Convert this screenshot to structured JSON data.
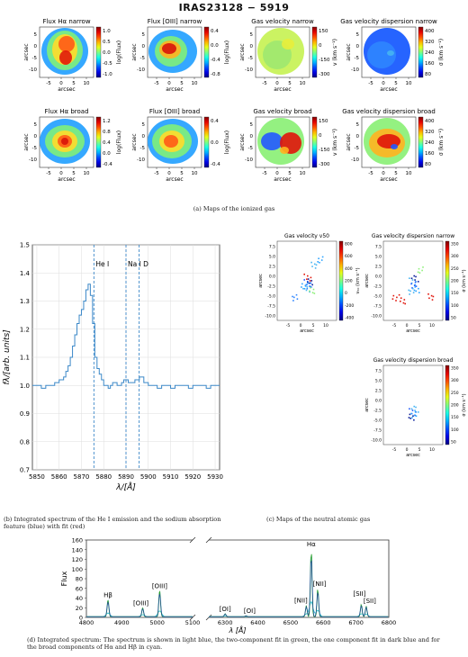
{
  "title": "IRAS23128 − 5919",
  "captions": {
    "a": "(a) Maps of the ionized gas",
    "b": "(b) Integrated spectrum of the He I emission and the sodium absorption feature (blue) with fit (red)",
    "c": "(c) Maps of the neutral atomic gas",
    "d": "(d) Integrated spectrum: The spectrum is shown in light blue, the two-component fit in green, the one component fit in dark blue and for the broad components of Hα and Hβ in cyan."
  },
  "panel_a": {
    "common": {
      "xlabel": "arcsec",
      "ylabel": "arcsec",
      "xticks": [
        "-5",
        "0",
        "5",
        "10"
      ],
      "yticks": [
        "5",
        "0",
        "-5",
        "-10"
      ]
    },
    "maps": [
      {
        "title": "Flux Hα narrow",
        "cbar_label": "log(Flux)",
        "cbar_ticks": [
          "1.0",
          "0.5",
          "0.0",
          "-0.5",
          "-1.0"
        ],
        "colormap": "jet",
        "pattern": "double"
      },
      {
        "title": "Flux [OIII] narrow",
        "cbar_label": "log(Flux)",
        "cbar_ticks": [
          "0.4",
          "0.0",
          "-0.4",
          "-0.8"
        ],
        "colormap": "jet",
        "pattern": "oiii"
      },
      {
        "title": "Gas velocity narrow",
        "cbar_label": "v (km s⁻¹)",
        "cbar_ticks": [
          "150",
          "0",
          "-150",
          "-300"
        ],
        "colormap": "jet",
        "pattern": "vel-narrow"
      },
      {
        "title": "Gas velocity dispersion narrow",
        "cbar_label": "σ (km s⁻¹)",
        "cbar_ticks": [
          "400",
          "320",
          "240",
          "160",
          "80"
        ],
        "colormap": "jet",
        "pattern": "disp-narrow"
      },
      {
        "title": "Flux Hα broad",
        "cbar_label": "log(Flux)",
        "cbar_ticks": [
          "1.2",
          "0.8",
          "0.4",
          "0.0",
          "-0.4"
        ],
        "colormap": "jet",
        "pattern": "broad"
      },
      {
        "title": "Flux [OIII] broad",
        "cbar_label": "log(Flux)",
        "cbar_ticks": [
          "0.4",
          "0.0",
          "-0.4"
        ],
        "colormap": "jet",
        "pattern": "broad2"
      },
      {
        "title": "Gas velocity broad",
        "cbar_label": "v (km s⁻¹)",
        "cbar_ticks": [
          "150",
          "0",
          "-150",
          "-300"
        ],
        "colormap": "jet",
        "pattern": "vel-broad"
      },
      {
        "title": "Gas velocity dispersion broad",
        "cbar_label": "σ (km s⁻¹)",
        "cbar_ticks": [
          "400",
          "320",
          "240",
          "160",
          "80"
        ],
        "colormap": "jet",
        "pattern": "disp-broad"
      }
    ]
  },
  "panel_c": {
    "common": {
      "xlabel": "arcsec",
      "ylabel": "arcsec",
      "xticks": [
        "-5",
        "0",
        "5",
        "10"
      ],
      "yticks": [
        "7.5",
        "5.0",
        "2.5",
        "0.0",
        "-2.5",
        "-5.0",
        "-7.5",
        "-10.0"
      ]
    },
    "maps": [
      {
        "title": "Gas velocity v50",
        "cbar_label": "v₅₀ (km s⁻¹)",
        "cbar_ticks": [
          "800",
          "600",
          "400",
          "200",
          "0",
          "-200",
          "-400"
        ]
      },
      {
        "title": "Gas velocity dispersion narrow",
        "cbar_label": "σ (km s⁻¹)",
        "cbar_ticks": [
          "350",
          "300",
          "250",
          "200",
          "150",
          "100",
          "50"
        ]
      },
      {
        "title": "Gas velocity dispersion broad",
        "cbar_label": "σ (km s⁻¹)",
        "cbar_ticks": [
          "350",
          "300",
          "250",
          "200",
          "150",
          "100",
          "50"
        ]
      }
    ]
  },
  "chart_data": [
    {
      "type": "line",
      "panel": "b",
      "xlabel": "λ/[Å]",
      "ylabel": "fλ/[arb. units]",
      "xlim": [
        5848,
        5932
      ],
      "ylim": [
        0.7,
        1.5
      ],
      "xticks": [
        5850,
        5860,
        5870,
        5880,
        5890,
        5900,
        5910,
        5920,
        5930
      ],
      "yticks": [
        0.7,
        0.8,
        0.9,
        1.0,
        1.1,
        1.2,
        1.3,
        1.4,
        1.5
      ],
      "grid": true,
      "lines": [
        {
          "label": "He I",
          "x": 5875.6
        },
        {
          "label": "Na I D",
          "x": 5890.0
        },
        {
          "label": "",
          "x": 5895.9
        }
      ],
      "series": [
        {
          "x": [
            5848,
            5850,
            5852,
            5854,
            5856,
            5858,
            5860,
            5862,
            5863,
            5864,
            5865,
            5866,
            5867,
            5868,
            5869,
            5870,
            5871,
            5872,
            5873,
            5874,
            5875,
            5876,
            5877,
            5878,
            5879,
            5880,
            5881,
            5882,
            5883,
            5884,
            5886,
            5888,
            5889,
            5890,
            5891,
            5892,
            5894,
            5896,
            5898,
            5900,
            5902,
            5904,
            5906,
            5908,
            5910,
            5912,
            5914,
            5916,
            5918,
            5920,
            5922,
            5924,
            5926,
            5928,
            5930,
            5932
          ],
          "y": [
            1.0,
            1.0,
            0.99,
            1.0,
            1.0,
            1.01,
            1.02,
            1.03,
            1.05,
            1.07,
            1.1,
            1.14,
            1.18,
            1.22,
            1.25,
            1.27,
            1.3,
            1.34,
            1.36,
            1.32,
            1.22,
            1.1,
            1.06,
            1.04,
            1.02,
            1.0,
            1.0,
            0.99,
            1.0,
            1.01,
            1.0,
            1.01,
            1.02,
            1.02,
            1.01,
            1.01,
            1.02,
            1.03,
            1.01,
            1.0,
            1.0,
            0.99,
            1.0,
            1.0,
            0.99,
            1.0,
            1.0,
            1.0,
            0.99,
            1.0,
            1.0,
            1.0,
            0.99,
            1.0,
            1.0,
            1.0
          ]
        }
      ]
    },
    {
      "type": "line",
      "panel": "d",
      "xlabel": "λ [Å]",
      "ylabel": "Flux",
      "ylim": [
        0,
        160
      ],
      "yticks": [
        0,
        20,
        40,
        60,
        80,
        100,
        120,
        140,
        160
      ],
      "xlim_left": [
        4800,
        5100
      ],
      "xticks_left": [
        4800,
        4900,
        5000,
        5100
      ],
      "xlim_right": [
        6250,
        6800
      ],
      "xticks_right": [
        6300,
        6400,
        6500,
        6600,
        6700,
        6800
      ],
      "lines": [
        {
          "label": "Hβ",
          "x": 4861,
          "peak": 34
        },
        {
          "label": "[OIII]",
          "x": 4959,
          "peak": 18
        },
        {
          "label": "[OIII]",
          "x": 5007,
          "peak": 53
        },
        {
          "label": "[OI]",
          "x": 6300,
          "peak": 6
        },
        {
          "label": "[OI]",
          "x": 6364,
          "peak": 2
        },
        {
          "label": "[NII]",
          "x": 6548,
          "peak": 23
        },
        {
          "label": "Hα",
          "x": 6563,
          "peak": 140
        },
        {
          "label": "[NII]",
          "x": 6583,
          "peak": 58
        },
        {
          "label": "[SII]",
          "x": 6716,
          "peak": 26
        },
        {
          "label": "[SII]",
          "x": 6731,
          "peak": 22
        }
      ],
      "colors": {
        "spectrum": "#9ad0ee",
        "two_component": "#2ca02c",
        "one_component": "#1f3b9a",
        "broad": "#17becf"
      }
    }
  ]
}
